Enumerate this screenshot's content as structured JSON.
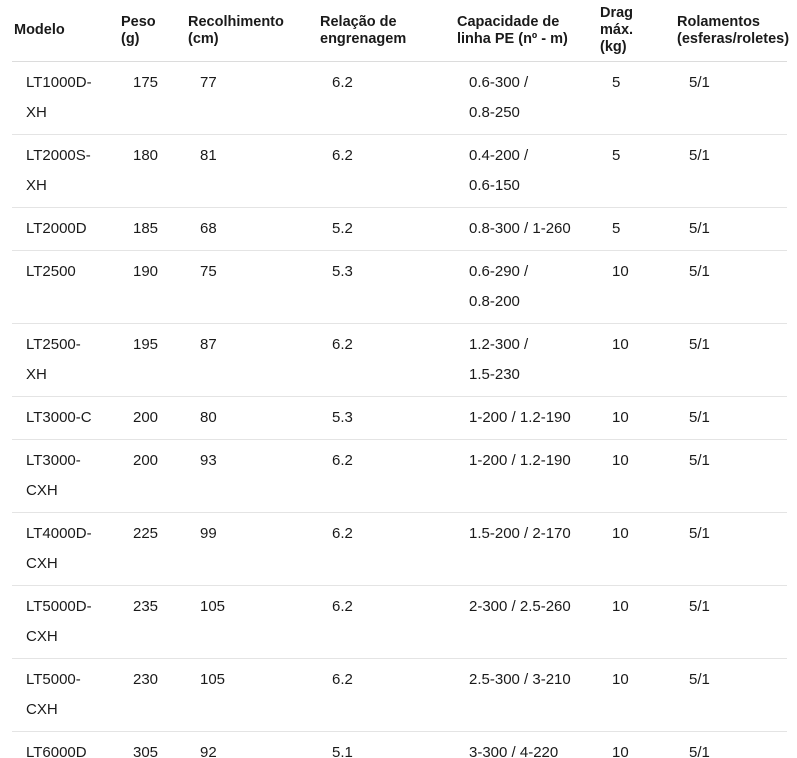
{
  "table": {
    "columns": [
      {
        "id": "modelo",
        "label": "Modelo"
      },
      {
        "id": "peso",
        "label": "Peso\n(g)"
      },
      {
        "id": "recolhimento",
        "label": "Recolhimento\n(cm)"
      },
      {
        "id": "relacao",
        "label": "Relação de\nengrenagem"
      },
      {
        "id": "capacidade",
        "label": "Capacidade de\nlinha PE (nº - m)"
      },
      {
        "id": "drag",
        "label": "Drag\nmáx.\n(kg)"
      },
      {
        "id": "rolamentos",
        "label": "Rolamentos\n(esferas/roletes)"
      }
    ],
    "rows": [
      {
        "cells": [
          "LT1000D-\nXH",
          "175",
          "77",
          "6.2",
          "0.6-300 /\n0.8-250",
          "5",
          "5/1"
        ]
      },
      {
        "cells": [
          "LT2000S-\nXH",
          "180",
          "81",
          "6.2",
          "0.4-200 /\n0.6-150",
          "5",
          "5/1"
        ]
      },
      {
        "cells": [
          "LT2000D",
          "185",
          "68",
          "5.2",
          "0.8-300 / 1-260",
          "5",
          "5/1"
        ]
      },
      {
        "cells": [
          "LT2500",
          "190",
          "75",
          "5.3",
          "0.6-290 /\n0.8-200",
          "10",
          "5/1"
        ]
      },
      {
        "cells": [
          "LT2500-\nXH",
          "195",
          "87",
          "6.2",
          "1.2-300 /\n1.5-230",
          "10",
          "5/1"
        ]
      },
      {
        "cells": [
          "LT3000-C",
          "200",
          "80",
          "5.3",
          "1-200 / 1.2-190",
          "10",
          "5/1"
        ]
      },
      {
        "cells": [
          "LT3000-\nCXH",
          "200",
          "93",
          "6.2",
          "1-200 / 1.2-190",
          "10",
          "5/1"
        ]
      },
      {
        "cells": [
          "LT4000D-\nCXH",
          "225",
          "99",
          "6.2",
          "1.5-200 / 2-170",
          "10",
          "5/1"
        ]
      },
      {
        "cells": [
          "LT5000D-\nCXH",
          "235",
          "105",
          "6.2",
          "2-300 / 2.5-260",
          "10",
          "5/1"
        ]
      },
      {
        "cells": [
          "LT5000-\nCXH",
          "230",
          "105",
          "6.2",
          "2.5-300 / 3-210",
          "10",
          "5/1"
        ]
      },
      {
        "cells": [
          "LT6000D",
          "305",
          "92",
          "5.1",
          "3-300 / 4-220",
          "10",
          "5/1"
        ]
      }
    ]
  },
  "colors": {
    "text": "#1a1a1a",
    "header_border": "#dcdcdc",
    "row_border": "#e4e4e4",
    "background": "#ffffff"
  }
}
